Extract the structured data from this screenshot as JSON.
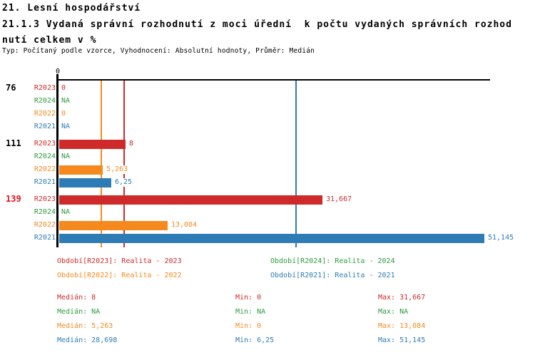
{
  "header": {
    "line1": "21. Lesní hospodářství",
    "line2": "21.1.3 Vydaná správní rozhodnutí z moci úřední  k počtu vydaných správních rozhod",
    "line3": "nutí celkem v %",
    "subtitle": "Typ: Počítaný podle vzorce, Vyhodnocení: Absolutní hodnoty, Průměr: Medián"
  },
  "colors": {
    "R2023": "#cf2a2a",
    "R2024": "#2e9b3c",
    "R2022": "#f6891e",
    "R2021": "#2d7cb5",
    "group_highlight": "#e8101c",
    "group_normal": "#000000",
    "axis": "#000000"
  },
  "chart_data": {
    "type": "bar",
    "orientation": "horizontal",
    "axis": {
      "tick_label": "0",
      "origin_value": 0,
      "xlim": [
        0,
        52
      ]
    },
    "series_order": [
      "R2023",
      "R2024",
      "R2022",
      "R2021"
    ],
    "groups": [
      {
        "id": "76",
        "highlight": false,
        "bars": [
          {
            "series": "R2023",
            "label": "0",
            "value": 0
          },
          {
            "series": "R2024",
            "label": "NA",
            "value": null
          },
          {
            "series": "R2022",
            "label": "0",
            "value": 0
          },
          {
            "series": "R2021",
            "label": "NA",
            "value": null
          }
        ]
      },
      {
        "id": "111",
        "highlight": false,
        "bars": [
          {
            "series": "R2023",
            "label": "8",
            "value": 8
          },
          {
            "series": "R2024",
            "label": "NA",
            "value": null
          },
          {
            "series": "R2022",
            "label": "5,263",
            "value": 5.263
          },
          {
            "series": "R2021",
            "label": "6,25",
            "value": 6.25
          }
        ]
      },
      {
        "id": "139",
        "highlight": true,
        "bars": [
          {
            "series": "R2023",
            "label": "31,667",
            "value": 31.667
          },
          {
            "series": "R2024",
            "label": "NA",
            "value": null
          },
          {
            "series": "R2022",
            "label": "13,084",
            "value": 13.084
          },
          {
            "series": "R2021",
            "label": "51,145",
            "value": 51.145
          }
        ]
      }
    ],
    "median_lines": [
      {
        "series": "R2023",
        "value": 8
      },
      {
        "series": "R2022",
        "value": 5.263
      },
      {
        "series": "R2021",
        "value": 28.698
      }
    ]
  },
  "legend": [
    {
      "series": "R2023",
      "label": "Období[R2023]: Realita - 2023"
    },
    {
      "series": "R2024",
      "label": "Období[R2024]: Realita - 2024"
    },
    {
      "series": "R2022",
      "label": "Období[R2022]: Realita - 2022"
    },
    {
      "series": "R2021",
      "label": "Období[R2021]: Realita - 2021"
    }
  ],
  "stats": {
    "labels": {
      "median": "Medián:",
      "min": "Min:",
      "max": "Max:"
    },
    "rows": [
      {
        "series": "R2023",
        "median": "8",
        "min": "0",
        "max": "31,667"
      },
      {
        "series": "R2024",
        "median": "NA",
        "min": "NA",
        "max": "NA"
      },
      {
        "series": "R2022",
        "median": "5,263",
        "min": "0",
        "max": "13,084"
      },
      {
        "series": "R2021",
        "median": "28,698",
        "min": "6,25",
        "max": "51,145"
      }
    ]
  }
}
